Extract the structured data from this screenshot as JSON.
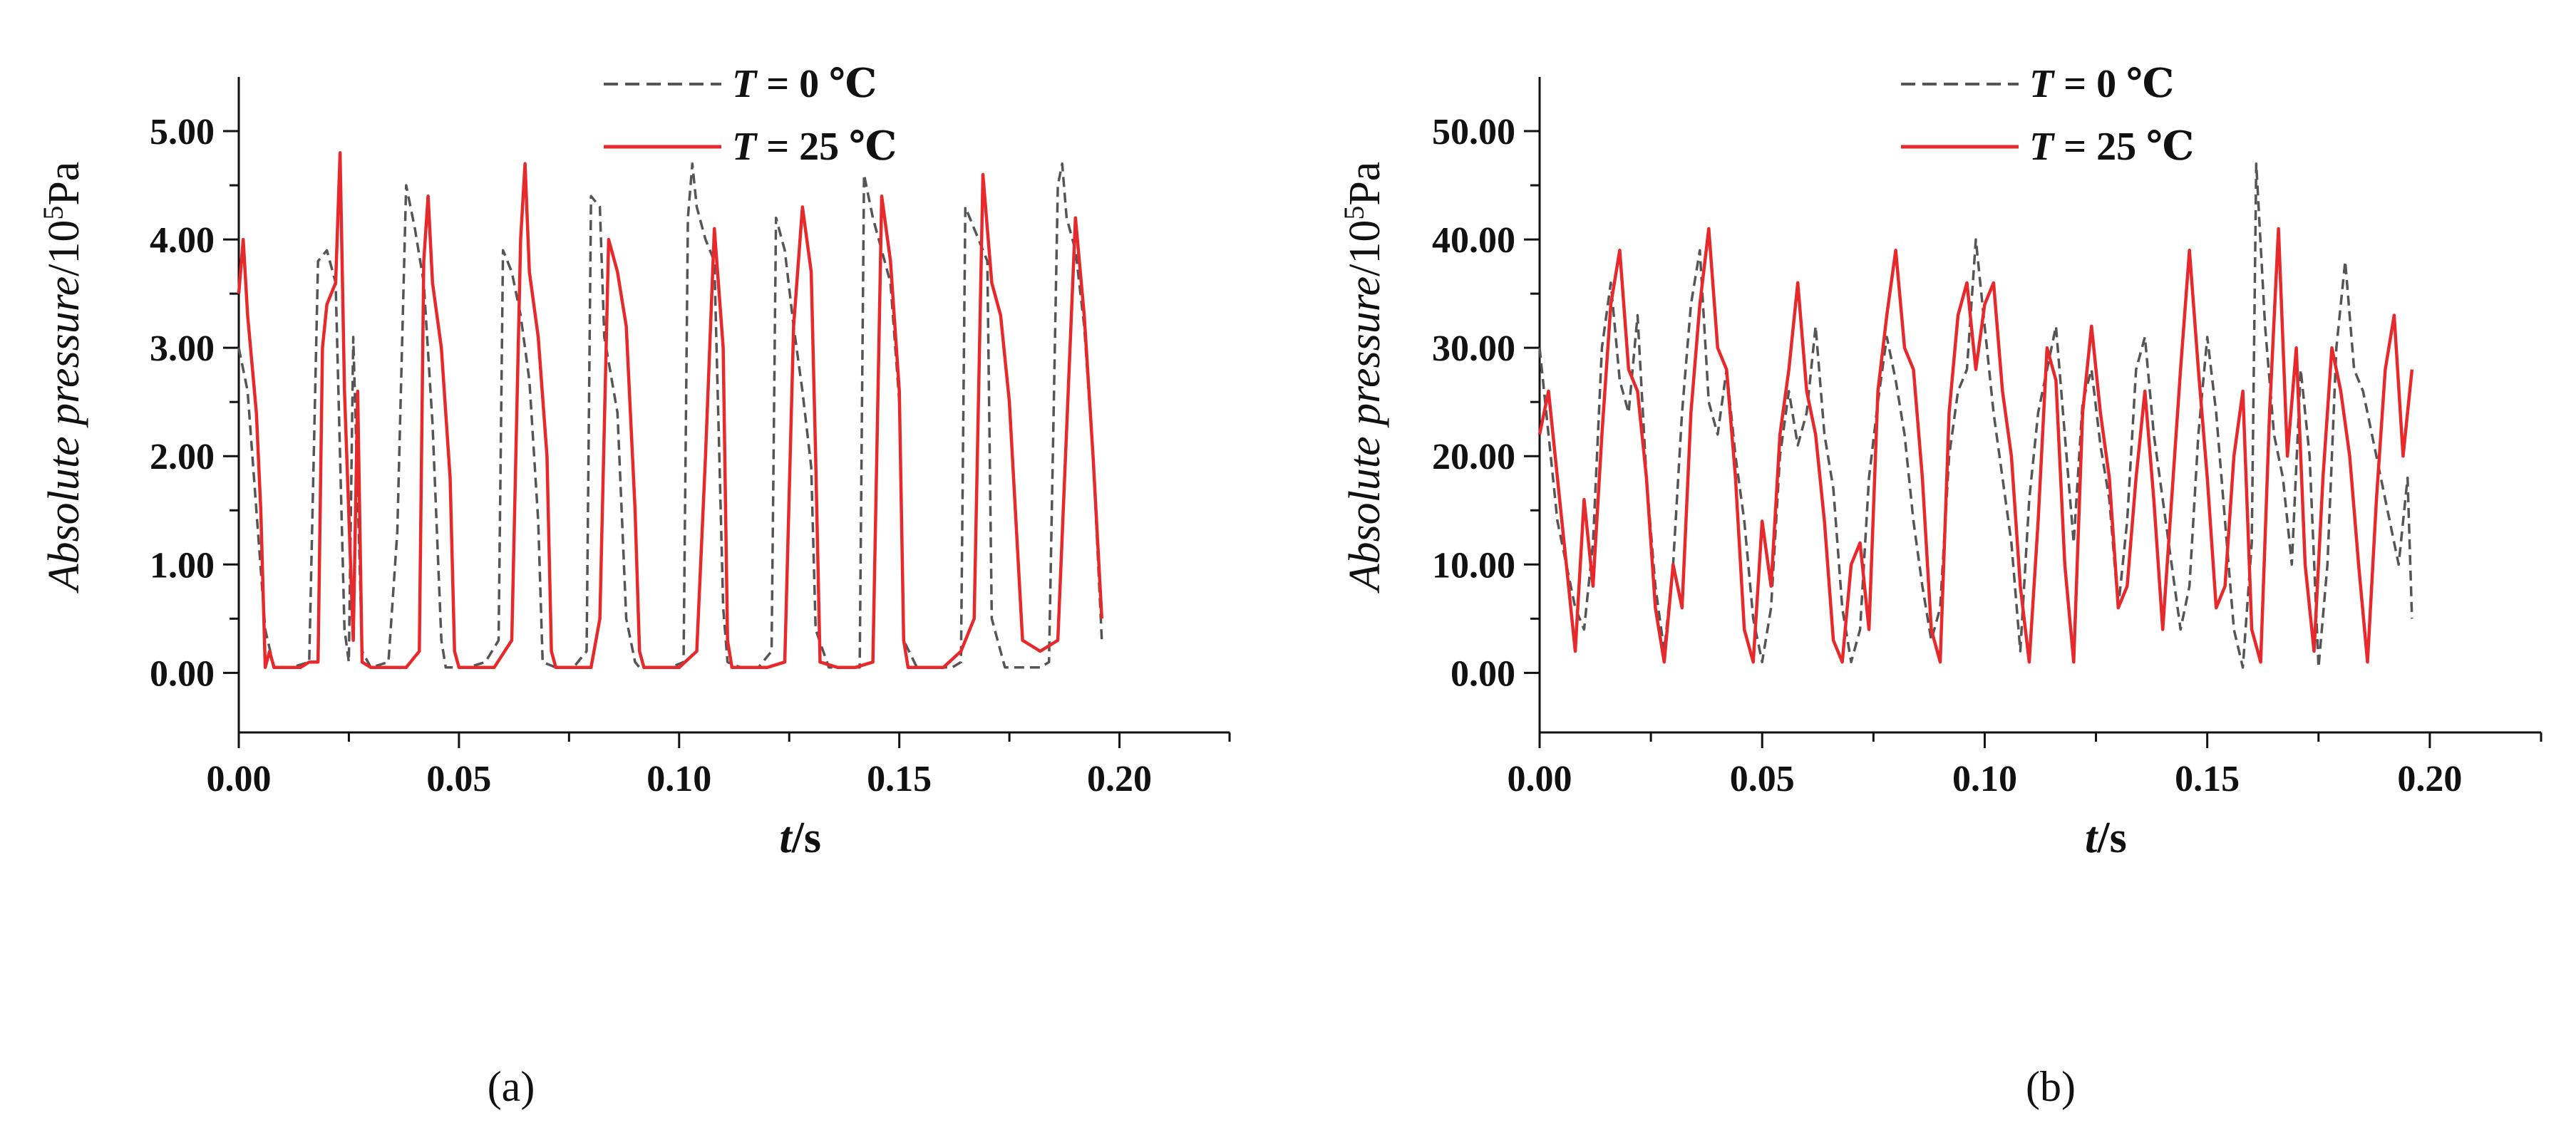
{
  "chart_data": [
    {
      "type": "line",
      "panel_label": "(a)",
      "xlabel_var": "t",
      "xlabel_unit": "/s",
      "ylabel_var": "Absolute pressure",
      "ylabel_unit": "/10",
      "ylabel_exp": "5",
      "ylabel_unit2": "Pa",
      "xlim": [
        0,
        0.225
      ],
      "ylim": [
        -0.55,
        5.5
      ],
      "xticks": [
        0,
        0.05,
        0.1,
        0.15,
        0.2
      ],
      "xtick_labels": [
        "0.00",
        "0.05",
        "0.10",
        "0.15",
        "0.20"
      ],
      "yticks": [
        0,
        1,
        2,
        3,
        4,
        5
      ],
      "ytick_labels": [
        "0.00",
        "1.00",
        "2.00",
        "3.00",
        "4.00",
        "5.00"
      ],
      "legend_position": "top-center",
      "series": [
        {
          "name": "T = 0 ℃",
          "legend_var": "T",
          "legend_rest": " = 0  ℃",
          "color": "#555555",
          "style": "dashed",
          "x": [
            0.0,
            0.002,
            0.004,
            0.006,
            0.008,
            0.012,
            0.016,
            0.018,
            0.02,
            0.022,
            0.024,
            0.025,
            0.026,
            0.028,
            0.03,
            0.034,
            0.036,
            0.038,
            0.04,
            0.042,
            0.044,
            0.046,
            0.047,
            0.049,
            0.052,
            0.056,
            0.059,
            0.06,
            0.062,
            0.064,
            0.066,
            0.068,
            0.069,
            0.072,
            0.076,
            0.079,
            0.08,
            0.082,
            0.083,
            0.086,
            0.088,
            0.09,
            0.091,
            0.094,
            0.098,
            0.101,
            0.102,
            0.103,
            0.104,
            0.106,
            0.108,
            0.11,
            0.111,
            0.114,
            0.118,
            0.121,
            0.122,
            0.124,
            0.126,
            0.128,
            0.13,
            0.131,
            0.134,
            0.138,
            0.141,
            0.142,
            0.144,
            0.146,
            0.148,
            0.15,
            0.151,
            0.154,
            0.158,
            0.162,
            0.164,
            0.165,
            0.166,
            0.168,
            0.17,
            0.171,
            0.174,
            0.178,
            0.182,
            0.184,
            0.186,
            0.187,
            0.188,
            0.19,
            0.192,
            0.194,
            0.196
          ],
          "y": [
            3.0,
            2.6,
            1.5,
            0.4,
            0.05,
            0.05,
            0.1,
            3.8,
            3.9,
            3.6,
            0.4,
            0.1,
            3.1,
            0.2,
            0.05,
            0.1,
            1.3,
            4.5,
            4.1,
            3.6,
            2.3,
            0.3,
            0.05,
            0.05,
            0.05,
            0.1,
            0.3,
            3.9,
            3.7,
            3.3,
            2.7,
            1.4,
            0.1,
            0.05,
            0.05,
            0.2,
            4.4,
            4.3,
            3.1,
            2.4,
            0.5,
            0.1,
            0.05,
            0.05,
            0.05,
            0.1,
            4.2,
            4.7,
            4.3,
            4.0,
            3.8,
            0.6,
            0.1,
            0.05,
            0.05,
            0.2,
            4.2,
            3.9,
            3.2,
            2.6,
            1.9,
            0.4,
            0.05,
            0.05,
            0.05,
            4.6,
            4.2,
            3.9,
            3.6,
            2.5,
            0.3,
            0.05,
            0.05,
            0.05,
            0.1,
            4.3,
            4.2,
            4.0,
            3.8,
            0.5,
            0.05,
            0.05,
            0.05,
            0.1,
            4.5,
            4.7,
            4.2,
            3.9,
            3.2,
            2.0,
            0.3
          ]
        },
        {
          "name": "T = 25 ℃",
          "legend_var": "T",
          "legend_rest": " = 25 ℃",
          "color": "#e8292c",
          "style": "solid",
          "x": [
            0.0,
            0.001,
            0.002,
            0.004,
            0.005,
            0.006,
            0.007,
            0.008,
            0.01,
            0.014,
            0.016,
            0.018,
            0.019,
            0.02,
            0.022,
            0.023,
            0.024,
            0.026,
            0.027,
            0.028,
            0.03,
            0.034,
            0.038,
            0.041,
            0.042,
            0.043,
            0.044,
            0.046,
            0.048,
            0.049,
            0.05,
            0.054,
            0.058,
            0.062,
            0.064,
            0.065,
            0.066,
            0.068,
            0.07,
            0.071,
            0.072,
            0.076,
            0.08,
            0.082,
            0.084,
            0.086,
            0.088,
            0.09,
            0.091,
            0.092,
            0.096,
            0.1,
            0.104,
            0.106,
            0.108,
            0.11,
            0.111,
            0.112,
            0.116,
            0.12,
            0.124,
            0.126,
            0.128,
            0.13,
            0.131,
            0.132,
            0.136,
            0.14,
            0.144,
            0.146,
            0.148,
            0.15,
            0.151,
            0.152,
            0.156,
            0.16,
            0.164,
            0.167,
            0.169,
            0.171,
            0.173,
            0.175,
            0.178,
            0.182,
            0.186,
            0.19,
            0.192,
            0.194,
            0.196
          ],
          "y": [
            3.5,
            4.0,
            3.3,
            2.4,
            1.5,
            0.05,
            0.2,
            0.05,
            0.05,
            0.05,
            0.1,
            0.1,
            3.0,
            3.4,
            3.6,
            4.8,
            2.6,
            0.3,
            2.6,
            0.1,
            0.05,
            0.05,
            0.05,
            0.2,
            3.8,
            4.4,
            3.6,
            3.0,
            1.8,
            0.2,
            0.05,
            0.05,
            0.05,
            0.3,
            4.0,
            4.7,
            3.7,
            3.1,
            2.0,
            0.2,
            0.05,
            0.05,
            0.05,
            0.5,
            4.0,
            3.7,
            3.2,
            1.5,
            0.2,
            0.05,
            0.05,
            0.05,
            0.2,
            2.0,
            4.1,
            3.0,
            0.3,
            0.05,
            0.05,
            0.05,
            0.1,
            3.2,
            4.3,
            3.7,
            2.0,
            0.1,
            0.05,
            0.05,
            0.1,
            4.4,
            3.8,
            2.6,
            0.3,
            0.05,
            0.05,
            0.05,
            0.2,
            0.5,
            4.6,
            3.6,
            3.3,
            2.5,
            0.3,
            0.2,
            0.3,
            4.2,
            3.3,
            2.0,
            0.5
          ]
        }
      ]
    },
    {
      "type": "line",
      "panel_label": "(b)",
      "xlabel_var": "t",
      "xlabel_unit": "/s",
      "ylabel_var": "Absolute pressure",
      "ylabel_unit": "/10",
      "ylabel_exp": "5",
      "ylabel_unit2": "Pa",
      "xlim": [
        0,
        0.225
      ],
      "ylim": [
        -5.5,
        55
      ],
      "xticks": [
        0,
        0.05,
        0.1,
        0.15,
        0.2
      ],
      "xtick_labels": [
        "0.00",
        "0.05",
        "0.10",
        "0.15",
        "0.20"
      ],
      "yticks": [
        0,
        10,
        20,
        30,
        40,
        50
      ],
      "ytick_labels": [
        "0.00",
        "10.00",
        "20.00",
        "30.00",
        "40.00",
        "50.00"
      ],
      "legend_position": "top-center",
      "series": [
        {
          "name": "T = 0 ℃",
          "legend_var": "T",
          "legend_rest": " = 0  ℃",
          "color": "#555555",
          "style": "dashed",
          "x": [
            0.0,
            0.002,
            0.004,
            0.006,
            0.008,
            0.01,
            0.012,
            0.014,
            0.016,
            0.018,
            0.02,
            0.022,
            0.024,
            0.026,
            0.028,
            0.03,
            0.032,
            0.034,
            0.036,
            0.038,
            0.04,
            0.042,
            0.044,
            0.046,
            0.048,
            0.05,
            0.052,
            0.054,
            0.056,
            0.058,
            0.06,
            0.062,
            0.064,
            0.066,
            0.068,
            0.07,
            0.072,
            0.074,
            0.076,
            0.078,
            0.08,
            0.082,
            0.084,
            0.086,
            0.088,
            0.09,
            0.092,
            0.094,
            0.096,
            0.098,
            0.1,
            0.102,
            0.104,
            0.106,
            0.108,
            0.11,
            0.112,
            0.114,
            0.116,
            0.118,
            0.12,
            0.122,
            0.124,
            0.126,
            0.128,
            0.13,
            0.132,
            0.134,
            0.136,
            0.138,
            0.14,
            0.142,
            0.144,
            0.146,
            0.148,
            0.15,
            0.152,
            0.154,
            0.156,
            0.158,
            0.16,
            0.161,
            0.163,
            0.165,
            0.167,
            0.169,
            0.171,
            0.173,
            0.175,
            0.177,
            0.179,
            0.181,
            0.183,
            0.185,
            0.187,
            0.189,
            0.191,
            0.193,
            0.195,
            0.196
          ],
          "y": [
            30,
            22,
            14,
            10,
            6,
            4,
            12,
            30,
            36,
            27,
            24,
            33,
            18,
            8,
            2,
            10,
            24,
            34,
            39,
            25,
            22,
            28,
            20,
            14,
            5,
            1,
            6,
            20,
            26,
            21,
            24,
            32,
            22,
            17,
            6,
            1,
            4,
            18,
            25,
            31,
            27,
            22,
            14,
            8,
            3,
            6,
            20,
            26,
            28,
            40,
            32,
            24,
            18,
            12,
            2,
            16,
            24,
            28,
            32,
            22,
            12,
            25,
            28,
            21,
            16,
            6,
            14,
            28,
            31,
            22,
            16,
            10,
            4,
            8,
            22,
            31,
            24,
            14,
            4,
            0.5,
            12,
            47,
            32,
            22,
            18,
            10,
            28,
            20,
            0.5,
            10,
            30,
            38,
            28,
            26,
            22,
            18,
            14,
            10,
            18,
            5
          ]
        },
        {
          "name": "T = 25 ℃",
          "legend_var": "T",
          "legend_rest": " = 25 ℃",
          "color": "#e8292c",
          "style": "solid",
          "x": [
            0.0,
            0.002,
            0.004,
            0.006,
            0.008,
            0.01,
            0.012,
            0.014,
            0.016,
            0.018,
            0.02,
            0.022,
            0.024,
            0.026,
            0.028,
            0.03,
            0.032,
            0.034,
            0.036,
            0.038,
            0.04,
            0.042,
            0.044,
            0.046,
            0.048,
            0.05,
            0.052,
            0.054,
            0.056,
            0.058,
            0.06,
            0.062,
            0.064,
            0.066,
            0.068,
            0.07,
            0.072,
            0.074,
            0.076,
            0.078,
            0.08,
            0.082,
            0.084,
            0.086,
            0.088,
            0.09,
            0.092,
            0.094,
            0.096,
            0.098,
            0.1,
            0.102,
            0.104,
            0.106,
            0.108,
            0.11,
            0.112,
            0.114,
            0.116,
            0.118,
            0.12,
            0.122,
            0.124,
            0.126,
            0.128,
            0.13,
            0.132,
            0.134,
            0.136,
            0.138,
            0.14,
            0.142,
            0.144,
            0.146,
            0.148,
            0.15,
            0.152,
            0.154,
            0.156,
            0.158,
            0.16,
            0.162,
            0.164,
            0.166,
            0.168,
            0.17,
            0.172,
            0.174,
            0.176,
            0.178,
            0.18,
            0.182,
            0.184,
            0.186,
            0.188,
            0.19,
            0.192,
            0.194,
            0.196
          ],
          "y": [
            22,
            26,
            18,
            10,
            2,
            16,
            8,
            22,
            34,
            39,
            28,
            26,
            18,
            6,
            1,
            10,
            6,
            24,
            34,
            41,
            30,
            28,
            18,
            4,
            1,
            14,
            8,
            22,
            28,
            36,
            26,
            22,
            14,
            3,
            1,
            10,
            12,
            4,
            26,
            33,
            39,
            30,
            28,
            18,
            4,
            1,
            24,
            33,
            36,
            28,
            34,
            36,
            26,
            20,
            8,
            1,
            14,
            30,
            27,
            10,
            1,
            24,
            32,
            24,
            18,
            6,
            8,
            18,
            26,
            16,
            4,
            16,
            28,
            39,
            28,
            18,
            6,
            8,
            20,
            26,
            4,
            1,
            24,
            41,
            20,
            30,
            10,
            2,
            18,
            30,
            26,
            20,
            10,
            1,
            16,
            28,
            33,
            20,
            28
          ]
        }
      ]
    }
  ]
}
